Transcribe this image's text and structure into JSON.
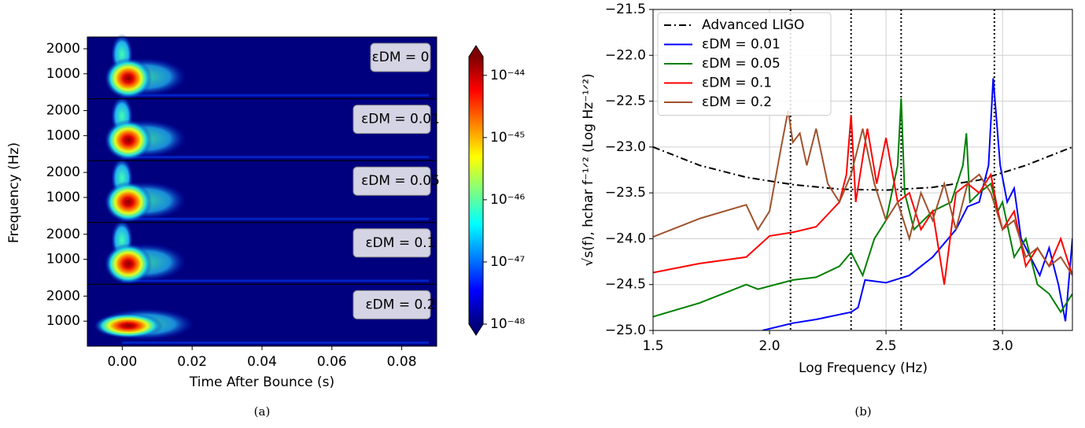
{
  "chart_data": [
    {
      "type": "spectrogram",
      "caption": "(a)",
      "xlabel": "Time After Bounce (s)",
      "ylabel": "Frequency (Hz)",
      "xlim": [
        -0.01,
        0.09
      ],
      "xticks": [
        {
          "value": 0,
          "label": "0.00"
        },
        {
          "value": 0.02,
          "label": "0.02"
        },
        {
          "value": 0.04,
          "label": "0.04"
        },
        {
          "value": 0.06,
          "label": "0.06"
        },
        {
          "value": 0.08,
          "label": "0.08"
        }
      ],
      "ylim": [
        0,
        2470
      ],
      "yticks": [
        1000,
        2000
      ],
      "panels": [
        {
          "annotation": "εDM = 0"
        },
        {
          "annotation": "εDM = 0.01"
        },
        {
          "annotation": "εDM = 0.05"
        },
        {
          "annotation": "εDM = 0.1"
        },
        {
          "annotation": "εDM = 0.2"
        }
      ],
      "colorbar": {
        "log": true,
        "colormap": "jet",
        "clim": [
          1e-48,
          2e-44
        ],
        "ticks": [
          {
            "value": 1e-44,
            "label": "10⁻⁴⁴"
          },
          {
            "value": 1e-45,
            "label": "10⁻⁴⁵"
          },
          {
            "value": 1e-46,
            "label": "10⁻⁴⁶"
          },
          {
            "value": 1e-47,
            "label": "10⁻⁴⁷"
          },
          {
            "value": 1e-48,
            "label": "10⁻⁴⁸"
          }
        ]
      }
    },
    {
      "type": "line",
      "caption": "(b)",
      "xlabel": "Log Frequency (Hz)",
      "ylabel": "√s(f), hchar f⁻¹ᐟ² (Log Hz⁻¹ᐟ²)",
      "xlim": [
        1.5,
        3.3
      ],
      "xticks": [
        1.5,
        {
          "value": 2,
          "label": "2.0"
        },
        2.5,
        {
          "value": 3,
          "label": "3.0"
        }
      ],
      "ylim": [
        -25,
        -21.5
      ],
      "yticks": [
        {
          "value": -25,
          "label": "−25.0"
        },
        {
          "value": -24.5,
          "label": "−24.5"
        },
        {
          "value": -24,
          "label": "−24.0"
        },
        {
          "value": -23.5,
          "label": "−23.5"
        },
        {
          "value": -23,
          "label": "−23.0"
        },
        {
          "value": -22.5,
          "label": "−22.5"
        },
        {
          "value": -22,
          "label": "−22.0"
        },
        {
          "value": -21.5,
          "label": "−21.5"
        }
      ],
      "grid": true,
      "legend": "upper left",
      "vlines": [
        2.09,
        2.35,
        2.565,
        2.965
      ],
      "series": [
        {
          "name": "Advanced LIGO",
          "color": "#000000",
          "dash": "dashdot",
          "x": [
            1.5,
            1.7,
            1.9,
            2.1,
            2.3,
            2.5,
            2.7,
            2.9,
            3.1,
            3.3
          ],
          "values": [
            -23.0,
            -23.2,
            -23.33,
            -23.41,
            -23.46,
            -23.47,
            -23.44,
            -23.36,
            -23.2,
            -23.0
          ]
        },
        {
          "name": "εDM = 0.01",
          "color": "#0000ff",
          "x": [
            1.97,
            2.1,
            2.2,
            2.35,
            2.38,
            2.41,
            2.5,
            2.6,
            2.7,
            2.8,
            2.85,
            2.9,
            2.94,
            2.96,
            2.99,
            3.02,
            3.05,
            3.08,
            3.12,
            3.16,
            3.2,
            3.24,
            3.27,
            3.3
          ],
          "values": [
            -25.0,
            -24.92,
            -24.88,
            -24.8,
            -24.75,
            -24.45,
            -24.48,
            -24.4,
            -24.2,
            -23.9,
            -23.65,
            -23.6,
            -23.2,
            -22.25,
            -23.2,
            -23.6,
            -23.45,
            -24.0,
            -24.2,
            -24.4,
            -24.1,
            -24.5,
            -24.9,
            -24.0
          ]
        },
        {
          "name": "εDM = 0.05",
          "color": "#008000",
          "x": [
            1.5,
            1.7,
            1.9,
            1.95,
            2.1,
            2.2,
            2.3,
            2.35,
            2.4,
            2.45,
            2.5,
            2.55,
            2.565,
            2.58,
            2.62,
            2.7,
            2.78,
            2.83,
            2.845,
            2.86,
            2.9,
            2.95,
            2.98,
            3.0,
            3.05,
            3.1,
            3.15,
            3.2,
            3.25,
            3.3
          ],
          "values": [
            -24.85,
            -24.7,
            -24.5,
            -24.55,
            -24.45,
            -24.42,
            -24.3,
            -24.15,
            -24.4,
            -24.0,
            -23.8,
            -23.2,
            -22.47,
            -23.5,
            -23.9,
            -23.7,
            -23.6,
            -23.2,
            -22.85,
            -23.6,
            -23.5,
            -23.4,
            -23.7,
            -23.6,
            -24.2,
            -24.0,
            -24.5,
            -24.6,
            -24.8,
            -24.6
          ]
        },
        {
          "name": "εDM = 0.1",
          "color": "#ff0000",
          "x": [
            1.5,
            1.7,
            1.9,
            2.0,
            2.1,
            2.2,
            2.3,
            2.33,
            2.35,
            2.37,
            2.42,
            2.46,
            2.5,
            2.55,
            2.6,
            2.65,
            2.7,
            2.75,
            2.8,
            2.85,
            2.9,
            2.95,
            2.98,
            3.0,
            3.05,
            3.1,
            3.15,
            3.2,
            3.25,
            3.3
          ],
          "values": [
            -24.37,
            -24.27,
            -24.2,
            -23.97,
            -23.93,
            -23.87,
            -23.6,
            -23.3,
            -22.65,
            -23.6,
            -22.8,
            -23.4,
            -22.9,
            -23.6,
            -23.5,
            -23.9,
            -23.7,
            -24.5,
            -23.5,
            -23.4,
            -23.5,
            -23.3,
            -23.7,
            -23.9,
            -23.7,
            -24.3,
            -24.1,
            -24.3,
            -24.0,
            -24.4
          ]
        },
        {
          "name": "εDM = 0.2",
          "color": "#a0522d",
          "x": [
            1.5,
            1.7,
            1.9,
            1.95,
            2.0,
            2.05,
            2.08,
            2.1,
            2.13,
            2.16,
            2.2,
            2.25,
            2.3,
            2.35,
            2.4,
            2.45,
            2.5,
            2.55,
            2.6,
            2.65,
            2.7,
            2.75,
            2.8,
            2.85,
            2.9,
            2.95,
            3.0,
            3.05,
            3.1,
            3.15,
            3.2,
            3.25,
            3.3
          ],
          "values": [
            -23.98,
            -23.78,
            -23.63,
            -23.9,
            -23.7,
            -23.0,
            -22.6,
            -22.95,
            -22.85,
            -23.2,
            -22.8,
            -23.4,
            -23.6,
            -23.3,
            -22.8,
            -23.4,
            -23.8,
            -23.6,
            -24.0,
            -23.5,
            -23.8,
            -23.4,
            -23.9,
            -23.4,
            -23.3,
            -23.5,
            -23.9,
            -23.8,
            -24.2,
            -24.1,
            -24.3,
            -24.2,
            -24.4
          ]
        }
      ]
    }
  ]
}
